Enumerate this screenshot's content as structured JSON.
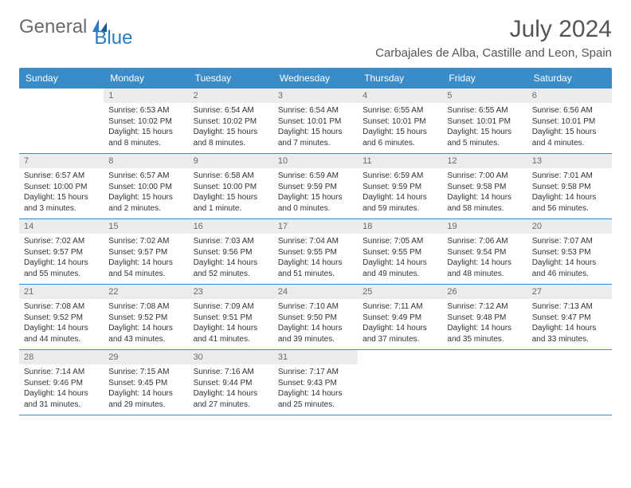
{
  "logo": {
    "text1": "General",
    "text2": "Blue"
  },
  "title": "July 2024",
  "location": "Carbajales de Alba, Castille and Leon, Spain",
  "columns": [
    "Sunday",
    "Monday",
    "Tuesday",
    "Wednesday",
    "Thursday",
    "Friday",
    "Saturday"
  ],
  "header_bg": "#3a8cc9",
  "daynum_bg": "#ececec",
  "weeks": [
    [
      {
        "empty": true
      },
      {
        "day": "1",
        "sunrise": "6:53 AM",
        "sunset": "10:02 PM",
        "daylight": "15 hours and 8 minutes."
      },
      {
        "day": "2",
        "sunrise": "6:54 AM",
        "sunset": "10:02 PM",
        "daylight": "15 hours and 8 minutes."
      },
      {
        "day": "3",
        "sunrise": "6:54 AM",
        "sunset": "10:01 PM",
        "daylight": "15 hours and 7 minutes."
      },
      {
        "day": "4",
        "sunrise": "6:55 AM",
        "sunset": "10:01 PM",
        "daylight": "15 hours and 6 minutes."
      },
      {
        "day": "5",
        "sunrise": "6:55 AM",
        "sunset": "10:01 PM",
        "daylight": "15 hours and 5 minutes."
      },
      {
        "day": "6",
        "sunrise": "6:56 AM",
        "sunset": "10:01 PM",
        "daylight": "15 hours and 4 minutes."
      }
    ],
    [
      {
        "day": "7",
        "sunrise": "6:57 AM",
        "sunset": "10:00 PM",
        "daylight": "15 hours and 3 minutes."
      },
      {
        "day": "8",
        "sunrise": "6:57 AM",
        "sunset": "10:00 PM",
        "daylight": "15 hours and 2 minutes."
      },
      {
        "day": "9",
        "sunrise": "6:58 AM",
        "sunset": "10:00 PM",
        "daylight": "15 hours and 1 minute."
      },
      {
        "day": "10",
        "sunrise": "6:59 AM",
        "sunset": "9:59 PM",
        "daylight": "15 hours and 0 minutes."
      },
      {
        "day": "11",
        "sunrise": "6:59 AM",
        "sunset": "9:59 PM",
        "daylight": "14 hours and 59 minutes."
      },
      {
        "day": "12",
        "sunrise": "7:00 AM",
        "sunset": "9:58 PM",
        "daylight": "14 hours and 58 minutes."
      },
      {
        "day": "13",
        "sunrise": "7:01 AM",
        "sunset": "9:58 PM",
        "daylight": "14 hours and 56 minutes."
      }
    ],
    [
      {
        "day": "14",
        "sunrise": "7:02 AM",
        "sunset": "9:57 PM",
        "daylight": "14 hours and 55 minutes."
      },
      {
        "day": "15",
        "sunrise": "7:02 AM",
        "sunset": "9:57 PM",
        "daylight": "14 hours and 54 minutes."
      },
      {
        "day": "16",
        "sunrise": "7:03 AM",
        "sunset": "9:56 PM",
        "daylight": "14 hours and 52 minutes."
      },
      {
        "day": "17",
        "sunrise": "7:04 AM",
        "sunset": "9:55 PM",
        "daylight": "14 hours and 51 minutes."
      },
      {
        "day": "18",
        "sunrise": "7:05 AM",
        "sunset": "9:55 PM",
        "daylight": "14 hours and 49 minutes."
      },
      {
        "day": "19",
        "sunrise": "7:06 AM",
        "sunset": "9:54 PM",
        "daylight": "14 hours and 48 minutes."
      },
      {
        "day": "20",
        "sunrise": "7:07 AM",
        "sunset": "9:53 PM",
        "daylight": "14 hours and 46 minutes."
      }
    ],
    [
      {
        "day": "21",
        "sunrise": "7:08 AM",
        "sunset": "9:52 PM",
        "daylight": "14 hours and 44 minutes."
      },
      {
        "day": "22",
        "sunrise": "7:08 AM",
        "sunset": "9:52 PM",
        "daylight": "14 hours and 43 minutes."
      },
      {
        "day": "23",
        "sunrise": "7:09 AM",
        "sunset": "9:51 PM",
        "daylight": "14 hours and 41 minutes."
      },
      {
        "day": "24",
        "sunrise": "7:10 AM",
        "sunset": "9:50 PM",
        "daylight": "14 hours and 39 minutes."
      },
      {
        "day": "25",
        "sunrise": "7:11 AM",
        "sunset": "9:49 PM",
        "daylight": "14 hours and 37 minutes."
      },
      {
        "day": "26",
        "sunrise": "7:12 AM",
        "sunset": "9:48 PM",
        "daylight": "14 hours and 35 minutes."
      },
      {
        "day": "27",
        "sunrise": "7:13 AM",
        "sunset": "9:47 PM",
        "daylight": "14 hours and 33 minutes."
      }
    ],
    [
      {
        "day": "28",
        "sunrise": "7:14 AM",
        "sunset": "9:46 PM",
        "daylight": "14 hours and 31 minutes."
      },
      {
        "day": "29",
        "sunrise": "7:15 AM",
        "sunset": "9:45 PM",
        "daylight": "14 hours and 29 minutes."
      },
      {
        "day": "30",
        "sunrise": "7:16 AM",
        "sunset": "9:44 PM",
        "daylight": "14 hours and 27 minutes."
      },
      {
        "day": "31",
        "sunrise": "7:17 AM",
        "sunset": "9:43 PM",
        "daylight": "14 hours and 25 minutes."
      },
      {
        "empty": true
      },
      {
        "empty": true
      },
      {
        "empty": true
      }
    ]
  ],
  "labels": {
    "sunrise": "Sunrise:",
    "sunset": "Sunset:",
    "daylight": "Daylight:"
  }
}
